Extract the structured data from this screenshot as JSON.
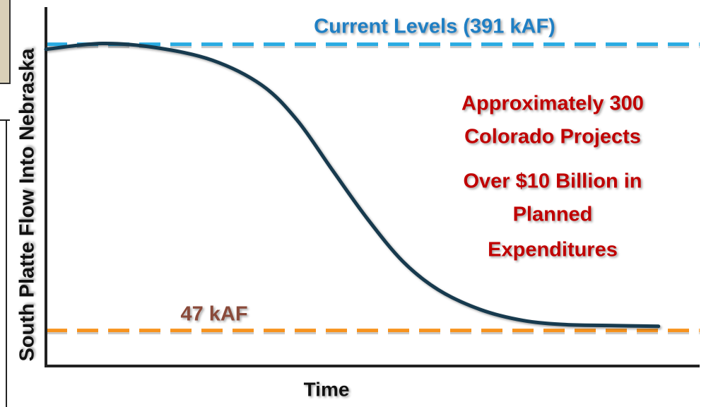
{
  "chart_data": {
    "type": "line",
    "y_label": "South Platte Flow Into Nebraska",
    "x_label": "Time",
    "x": [
      0,
      8.6,
      16.8,
      25.4,
      33,
      38.4,
      43.8,
      49.2,
      54.6,
      60,
      66.5,
      73,
      79.5,
      86,
      93.7
    ],
    "series": [
      {
        "color": "#173a4e",
        "values": [
          385,
          392,
          387,
          372,
          342,
          300,
          240,
          181,
          130,
          96,
          72,
          59,
          54,
          53,
          52
        ]
      }
    ],
    "xlim": [
      0,
      100
    ],
    "ylim": [
      0,
      440
    ],
    "reference_lines": [
      {
        "value": 391,
        "label": "Current Levels (391 kAF)",
        "color": "#29abe2",
        "label_color": "#1f7fc4"
      },
      {
        "value": 47,
        "label": "47 kAF",
        "color": "#f7931e",
        "label_color": "#8a4a3a"
      }
    ],
    "annotations": [
      "Approximately 300",
      "Colorado Projects",
      "Over $10 Billion in",
      "Planned",
      "Expenditures"
    ],
    "annotation_color": "#c00000"
  }
}
